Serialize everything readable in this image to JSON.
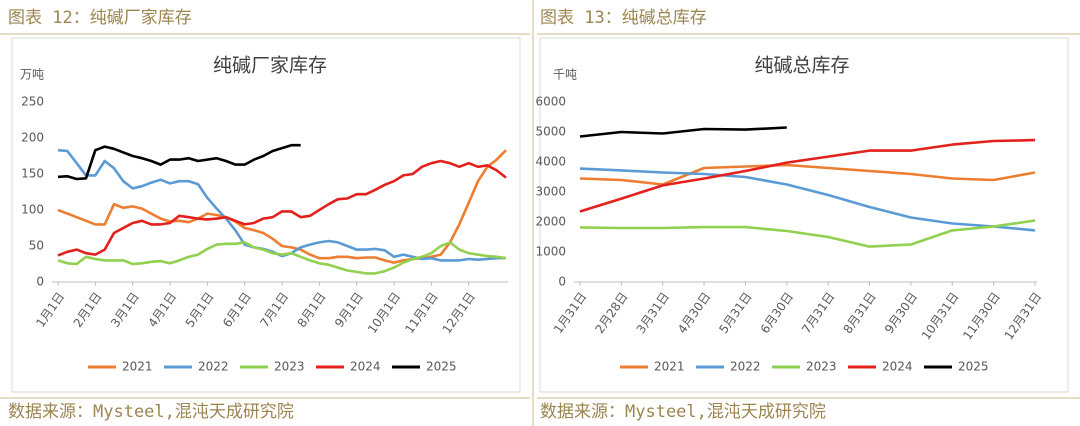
{
  "captions": [
    "图表 12：纯碱厂家库存",
    "图表 13：纯碱总库存"
  ],
  "sources": [
    "数据来源：Mysteel,混沌天成研究院",
    "数据来源：Mysteel,混沌天成研究院"
  ],
  "chart_data": [
    {
      "type": "line",
      "title": "纯碱厂家库存",
      "y_label": "万吨",
      "categories": [
        "1月1日",
        null,
        null,
        null,
        "2月1日",
        null,
        null,
        null,
        "3月1日",
        null,
        null,
        null,
        "4月1日",
        null,
        null,
        null,
        "5月1日",
        null,
        null,
        null,
        "6月1日",
        null,
        null,
        null,
        "7月1日",
        null,
        null,
        null,
        "8月1日",
        null,
        null,
        null,
        "9月1日",
        null,
        null,
        null,
        "10月1日",
        null,
        null,
        null,
        "11月1日",
        null,
        null,
        null,
        "12月1日",
        null,
        null,
        null,
        null
      ],
      "ylim": [
        0,
        250
      ],
      "yticks": [
        0,
        50,
        100,
        150,
        200,
        250
      ],
      "grid": false,
      "series": [
        {
          "name": "2021",
          "color": "#ed7d31",
          "values": [
            100,
            95,
            90,
            85,
            80,
            80,
            108,
            103,
            105,
            102,
            95,
            88,
            84,
            85,
            83,
            88,
            95,
            93,
            90,
            84,
            75,
            72,
            68,
            60,
            50,
            48,
            45,
            38,
            33,
            33,
            35,
            35,
            33,
            34,
            34,
            30,
            27,
            30,
            32,
            33,
            35,
            38,
            55,
            80,
            110,
            140,
            160,
            170,
            183
          ]
        },
        {
          "name": "2022",
          "color": "#5b9bd5",
          "values": [
            183,
            182,
            165,
            148,
            148,
            168,
            158,
            140,
            130,
            133,
            138,
            142,
            137,
            140,
            140,
            136,
            117,
            102,
            88,
            72,
            52,
            48,
            46,
            42,
            36,
            40,
            48,
            52,
            55,
            57,
            55,
            50,
            45,
            45,
            46,
            44,
            35,
            38,
            35,
            32,
            33,
            30,
            30,
            30,
            32,
            31,
            32,
            33,
            33
          ]
        },
        {
          "name": "2023",
          "color": "#92d050",
          "values": [
            30,
            26,
            25,
            35,
            32,
            30,
            30,
            30,
            25,
            26,
            28,
            29,
            26,
            30,
            35,
            38,
            46,
            52,
            53,
            53,
            55,
            48,
            45,
            40,
            38,
            40,
            35,
            30,
            26,
            24,
            20,
            16,
            14,
            12,
            12,
            15,
            20,
            27,
            32,
            35,
            40,
            50,
            55,
            45,
            40,
            38,
            36,
            35,
            33
          ]
        },
        {
          "name": "2024",
          "color": "#e3201b",
          "values": [
            37,
            42,
            45,
            40,
            38,
            45,
            68,
            75,
            82,
            85,
            80,
            80,
            82,
            92,
            90,
            88,
            87,
            88,
            90,
            85,
            80,
            82,
            88,
            90,
            98,
            98,
            90,
            92,
            100,
            108,
            115,
            116,
            122,
            122,
            128,
            135,
            140,
            148,
            150,
            160,
            165,
            168,
            165,
            160,
            165,
            160,
            162,
            155,
            145
          ]
        },
        {
          "name": "2025",
          "color": "#000000",
          "values": [
            146,
            147,
            143,
            144,
            183,
            188,
            185,
            180,
            175,
            172,
            168,
            163,
            170,
            170,
            172,
            168,
            170,
            172,
            168,
            163,
            163,
            170,
            175,
            182,
            186,
            190,
            190,
            null,
            null,
            null,
            null,
            null,
            null,
            null,
            null,
            null,
            null,
            null,
            null,
            null,
            null,
            null,
            null,
            null,
            null,
            null,
            null,
            null,
            null
          ]
        }
      ]
    },
    {
      "type": "line",
      "title": "纯碱总库存",
      "y_label": "千吨",
      "categories": [
        "1月31日",
        "2月28日",
        "3月31日",
        "4月30日",
        "5月31日",
        "6月30日",
        "7月31日",
        "8月31日",
        "9月30日",
        "10月31日",
        "11月30日",
        "12月31日"
      ],
      "ylim": [
        0,
        6000
      ],
      "yticks": [
        0,
        1000,
        2000,
        3000,
        4000,
        5000,
        6000
      ],
      "grid": false,
      "series": [
        {
          "name": "2021",
          "color": "#ed7d31",
          "values": [
            3450,
            3400,
            3250,
            3800,
            3850,
            3900,
            3800,
            3700,
            3600,
            3450,
            3400,
            3650
          ]
        },
        {
          "name": "2022",
          "color": "#5b9bd5",
          "values": [
            3780,
            3720,
            3650,
            3600,
            3500,
            3250,
            2900,
            2500,
            2150,
            1950,
            1850,
            1720
          ]
        },
        {
          "name": "2023",
          "color": "#92d050",
          "values": [
            1820,
            1800,
            1800,
            1830,
            1830,
            1700,
            1500,
            1180,
            1250,
            1720,
            1850,
            2050
          ]
        },
        {
          "name": "2024",
          "color": "#e3201b",
          "values": [
            2350,
            2780,
            3220,
            3450,
            3700,
            3980,
            4180,
            4380,
            4380,
            4580,
            4700,
            4730
          ]
        },
        {
          "name": "2025",
          "color": "#000000",
          "values": [
            4850,
            5000,
            4950,
            5100,
            5080,
            5150,
            null,
            null,
            null,
            null,
            null,
            null
          ]
        }
      ]
    }
  ]
}
